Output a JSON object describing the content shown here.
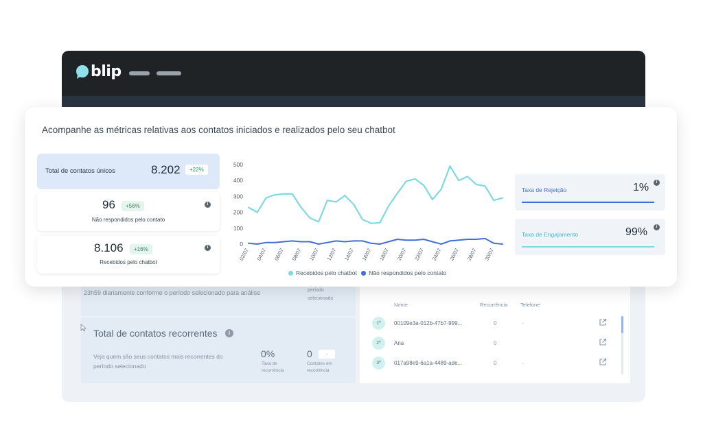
{
  "app": {
    "logo_text": "blip"
  },
  "metrics_card": {
    "heading": "Acompanhe as métricas relativas aos contatos iniciados e realizados pelo seu chatbot",
    "unique_contacts": {
      "label": "Total de contatos únicos",
      "value": "8.202",
      "badge": "+22%"
    },
    "not_answered": {
      "value": "96",
      "badge": "+56%",
      "label": "Não respondidos pelo contato"
    },
    "received": {
      "value": "8.106",
      "badge": "+16%",
      "label": "Recebidos pelo chatbot"
    },
    "rejection": {
      "label": "Taxa de Rejeição",
      "value": "1%"
    },
    "engagement": {
      "label": "Taxa de Engajamento",
      "value": "99%"
    },
    "info_glyph": "i"
  },
  "chart_data": {
    "type": "line",
    "x": [
      "02/07",
      "03/07",
      "04/07",
      "05/07",
      "06/07",
      "07/07",
      "08/07",
      "09/07",
      "10/07",
      "11/07",
      "12/07",
      "13/07",
      "14/07",
      "15/07",
      "16/07",
      "17/07",
      "18/07",
      "19/07",
      "20/07",
      "21/07",
      "22/07",
      "23/07",
      "24/07",
      "25/07",
      "26/07",
      "27/07",
      "28/07",
      "29/07",
      "30/07",
      "31/07"
    ],
    "xticks": [
      "02/07",
      "04/07",
      "06/07",
      "08/07",
      "10/07",
      "12/07",
      "14/07",
      "16/07",
      "18/07",
      "20/07",
      "22/07",
      "24/07",
      "26/07",
      "28/07",
      "30/07"
    ],
    "yticks": [
      0,
      100,
      200,
      300,
      400,
      500
    ],
    "ylim": [
      0,
      500
    ],
    "series": [
      {
        "name": "Recebidos pelo chatbot",
        "color": "#7fd8e2",
        "values": [
          230,
          200,
          290,
          310,
          315,
          315,
          230,
          165,
          140,
          275,
          265,
          305,
          250,
          155,
          130,
          135,
          240,
          320,
          395,
          410,
          370,
          280,
          345,
          490,
          400,
          425,
          375,
          365,
          275,
          290
        ]
      },
      {
        "name": "Não respondidos pelo contato",
        "color": "#3f6fd6",
        "values": [
          5,
          0,
          10,
          10,
          15,
          20,
          15,
          15,
          0,
          10,
          20,
          15,
          20,
          20,
          5,
          0,
          15,
          30,
          25,
          25,
          30,
          15,
          0,
          20,
          25,
          30,
          30,
          35,
          5,
          0
        ]
      }
    ]
  },
  "back_panel": {
    "period_text": "23h59 diariamente conforme o período selecionado para análise",
    "period_label_1": "período",
    "period_label_2": "selecionado",
    "recurring_title": "Total de contatos recorrentes",
    "recurring_desc_1": "Veja quem são seus contatos mais recorrentes do",
    "recurring_desc_2": "período selecionado",
    "rate_value": "0%",
    "rate_label_1": "Taxa de",
    "rate_label_2": "recorrência",
    "count_value": "0",
    "count_badge": "-",
    "count_label_1": "Contatos em",
    "count_label_2": "recorrência",
    "table_headers": [
      "Nome",
      "Recorrência",
      "Telefone"
    ],
    "rows": [
      {
        "rank": "1º",
        "name": "00109e3a-012b-47b7-999...",
        "recurrence": "0",
        "phone": "-"
      },
      {
        "rank": "2º",
        "name": "Ana",
        "recurrence": "0",
        "phone": "-"
      },
      {
        "rank": "3º",
        "name": "017a98e9-6a1a-4489-ade...",
        "recurrence": "0",
        "phone": "-"
      }
    ]
  }
}
